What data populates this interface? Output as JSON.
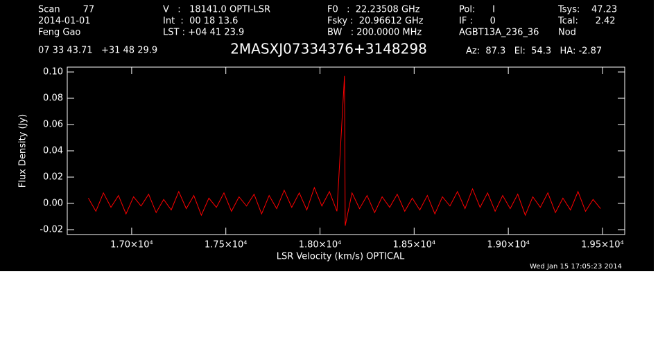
{
  "header": {
    "columns": [
      [
        "Scan        77",
        "2014-01-01",
        "Feng Gao"
      ],
      [
        "V   :   18141.0 OPTI-LSR",
        "Int  :  00 18 13.6",
        "LST : +04 41 23.9"
      ],
      [
        "F0   :  22.23508 GHz",
        "Fsky :  20.96612 GHz",
        "BW   : 200.0000 MHz"
      ],
      [
        "Pol:      I",
        "IF :      0",
        "AGBT13A_236_36"
      ],
      [
        "Tsys:    47.23",
        "Tcal:      2.42",
        "Nod"
      ]
    ],
    "coordinates": "07 33 43.71   +31 48 29.9",
    "pointing": "Az:  87.3   El:  54.3   HA: -2.87"
  },
  "timestamp": "Wed Jan 15 17:05:23 2014",
  "chart_data": {
    "type": "line",
    "title": "2MASXJ07334376+3148298",
    "x_label": "LSR Velocity (km/s) OPTICAL",
    "y_label": "Flux Density (Jy)",
    "x": [
      16770,
      16810,
      16850,
      16890,
      16930,
      16970,
      17010,
      17050,
      17090,
      17130,
      17170,
      17210,
      17250,
      17290,
      17330,
      17370,
      17410,
      17450,
      17490,
      17530,
      17570,
      17610,
      17650,
      17690,
      17730,
      17770,
      17810,
      17850,
      17890,
      17930,
      17970,
      18010,
      18050,
      18090,
      18130,
      18134,
      18170,
      18210,
      18250,
      18290,
      18330,
      18370,
      18410,
      18450,
      18490,
      18530,
      18570,
      18610,
      18650,
      18690,
      18730,
      18770,
      18810,
      18850,
      18890,
      18930,
      18970,
      19010,
      19050,
      19090,
      19130,
      19170,
      19210,
      19250,
      19290,
      19330,
      19370,
      19410,
      19450,
      19490
    ],
    "series": [
      {
        "color": "#ff0000",
        "values": [
          0.004,
          -0.006,
          0.008,
          -0.003,
          0.006,
          -0.008,
          0.005,
          -0.002,
          0.007,
          -0.007,
          0.003,
          -0.005,
          0.009,
          -0.004,
          0.006,
          -0.009,
          0.004,
          -0.003,
          0.008,
          -0.006,
          0.005,
          -0.002,
          0.007,
          -0.008,
          0.006,
          -0.004,
          0.01,
          -0.003,
          0.008,
          -0.005,
          0.012,
          -0.002,
          0.009,
          -0.006,
          0.097,
          -0.017,
          0.008,
          -0.004,
          0.006,
          -0.007,
          0.005,
          -0.003,
          0.007,
          -0.006,
          0.004,
          -0.005,
          0.006,
          -0.008,
          0.005,
          -0.002,
          0.009,
          -0.004,
          0.011,
          -0.003,
          0.008,
          -0.006,
          0.006,
          -0.004,
          0.007,
          -0.009,
          0.005,
          -0.003,
          0.008,
          -0.007,
          0.004,
          -0.005,
          0.009,
          -0.006,
          0.003,
          -0.004
        ]
      }
    ],
    "xlim": [
      16658,
      19618
    ],
    "ylim": [
      -0.0237,
      0.1037
    ],
    "xticks": [
      {
        "value": 17000,
        "label": "1.70×10⁴"
      },
      {
        "value": 17500,
        "label": "1.75×10⁴"
      },
      {
        "value": 18000,
        "label": "1.80×10⁴"
      },
      {
        "value": 18500,
        "label": "1.85×10⁴"
      },
      {
        "value": 19000,
        "label": "1.90×10⁴"
      },
      {
        "value": 19500,
        "label": "1.95×10⁴"
      }
    ],
    "yticks": [
      -0.02,
      {
        "value": 0,
        "label": "0.00"
      },
      0.02,
      0.04,
      0.06,
      0.08,
      {
        "value": 0.1,
        "label": "0.10"
      }
    ]
  }
}
